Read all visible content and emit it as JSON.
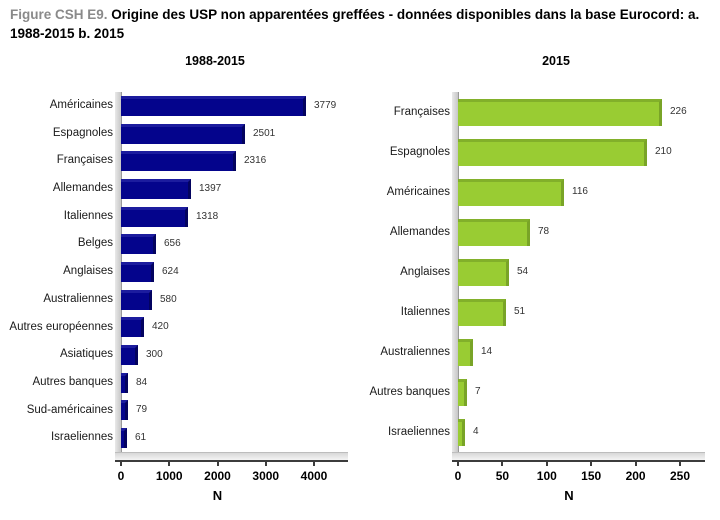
{
  "figure": {
    "prefix": "Figure CSH E9.",
    "title": "Origine des USP non apparentées greffées - données disponibles dans la base Eurocord: a. 1988-2015  b. 2015"
  },
  "colors": {
    "title_prefix_gray": "#8a8a8a",
    "bar_blue": "#04048C",
    "bar_green": "#99CC33"
  },
  "chart_data": [
    {
      "type": "bar",
      "orientation": "horizontal",
      "title": "1988-2015",
      "xlabel": "N",
      "xlim": [
        0,
        4000
      ],
      "xticks": [
        0,
        1000,
        2000,
        3000,
        4000
      ],
      "grid": false,
      "legend": "none",
      "bar_color": "#04048C",
      "bar_bevel_top": "#1C1C9E",
      "bar_bevel_side": "#03035F",
      "categories": [
        "Américaines",
        "Espagnoles",
        "Françaises",
        "Allemandes",
        "Italiennes",
        "Belges",
        "Anglaises",
        "Australiennes",
        "Autres européennes",
        "Asiatiques",
        "Autres banques",
        "Sud-américaines",
        "Israeliennes"
      ],
      "values": [
        3779,
        2501,
        2316,
        1397,
        1318,
        656,
        624,
        580,
        420,
        300,
        84,
        79,
        61
      ]
    },
    {
      "type": "bar",
      "orientation": "horizontal",
      "title": "2015",
      "xlabel": "N",
      "xlim": [
        0,
        250
      ],
      "xticks": [
        0,
        50,
        100,
        150,
        200,
        250
      ],
      "grid": false,
      "legend": "none",
      "bar_color": "#99CC33",
      "bar_bevel_top": "#82B02A",
      "bar_bevel_side": "#79A427",
      "categories": [
        "Françaises",
        "Espagnoles",
        "Américaines",
        "Allemandes",
        "Anglaises",
        "Italiennes",
        "Australiennes",
        "Autres banques",
        "Israeliennes"
      ],
      "values": [
        226,
        210,
        116,
        78,
        54,
        51,
        14,
        7,
        4
      ]
    }
  ]
}
